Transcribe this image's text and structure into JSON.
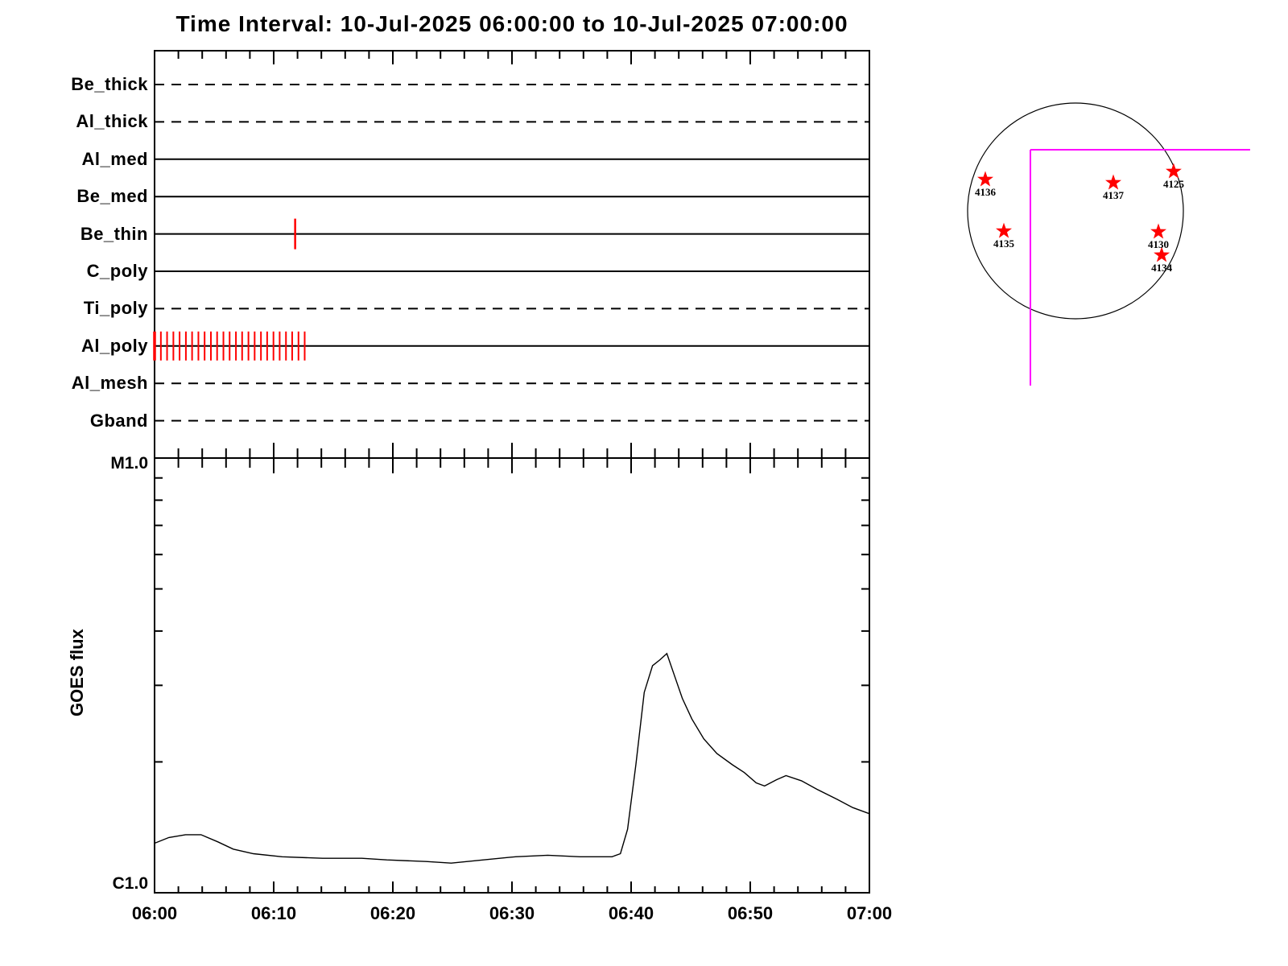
{
  "title": "Time Interval: 10-Jul-2025 06:00:00 to 10-Jul-2025 07:00:00",
  "colors": {
    "background": "#ffffff",
    "axis": "#000000",
    "exposure_mark": "#ff0000",
    "active_region_star": "#ff0000",
    "fov": "#ff00ff"
  },
  "chart_data": [
    {
      "type": "line",
      "panel": "xrt-filter-timeline",
      "x_axis": {
        "start_label": "06:00",
        "end_label": "07:00",
        "minutes_range": [
          0,
          60
        ],
        "minor_tick_minutes": 2,
        "major_tick_minutes": 10
      },
      "categories": [
        "Be_thick",
        "Al_thick",
        "Al_med",
        "Be_med",
        "Be_thin",
        "C_poly",
        "Ti_poly",
        "Al_poly",
        "Al_mesh",
        "Gband"
      ],
      "line_styles": [
        "dashed",
        "dashed",
        "solid",
        "solid",
        "solid",
        "solid",
        "dashed",
        "solid",
        "dashed",
        "dashed"
      ],
      "exposure_marks_minutes": {
        "Be_thin": [
          11.8
        ],
        "Al_poly": [
          0,
          0.53,
          1.05,
          1.58,
          2.1,
          2.63,
          3.15,
          3.68,
          4.2,
          4.73,
          5.25,
          5.78,
          6.3,
          6.83,
          7.35,
          7.88,
          8.4,
          8.93,
          9.45,
          9.98,
          10.5,
          11.03,
          11.55,
          12.08,
          12.6
        ]
      }
    },
    {
      "type": "line",
      "panel": "goes-flux",
      "ylabel": "GOES flux",
      "y_axis": {
        "scale": "log",
        "top_label": "M1.0",
        "bottom_label": "C1.0",
        "top_value_wm2": 1e-05,
        "bottom_value_wm2": 1e-06
      },
      "x_tick_labels": [
        "06:00",
        "06:10",
        "06:20",
        "06:30",
        "06:40",
        "06:50",
        "07:00"
      ],
      "series": [
        {
          "name": "GOES flux",
          "x_minutes": [
            0,
            1.2,
            2.6,
            3.9,
            5.3,
            6.6,
            8.3,
            10.7,
            14.1,
            17.4,
            19.5,
            22.8,
            24.9,
            27.6,
            30.3,
            33,
            35.7,
            38.4,
            39.1,
            39.7,
            40.4,
            41.1,
            41.8,
            42.4,
            43,
            43.6,
            44.3,
            45.1,
            46.1,
            47.2,
            48.5,
            49.5,
            50.5,
            51.2,
            52.2,
            53,
            54.3,
            55.6,
            57.3,
            58.6,
            60
          ],
          "flux_1e6_wm2": [
            1.3,
            1.34,
            1.36,
            1.36,
            1.31,
            1.26,
            1.23,
            1.21,
            1.2,
            1.2,
            1.19,
            1.18,
            1.17,
            1.19,
            1.21,
            1.22,
            1.21,
            1.21,
            1.23,
            1.4,
            1.97,
            2.89,
            3.33,
            3.43,
            3.55,
            3.18,
            2.8,
            2.51,
            2.26,
            2.09,
            1.97,
            1.89,
            1.79,
            1.76,
            1.82,
            1.86,
            1.81,
            1.73,
            1.64,
            1.57,
            1.52
          ]
        }
      ],
      "peak": {
        "time": "06:43",
        "flux_class": "C3.5"
      }
    },
    {
      "type": "scatter",
      "panel": "solar-disk-map",
      "active_regions": [
        {
          "label": "4136",
          "x_r": -0.836,
          "y_r": -0.291
        },
        {
          "label": "4137",
          "x_r": 0.351,
          "y_r": -0.261
        },
        {
          "label": "4125",
          "x_r": 0.91,
          "y_r": -0.366
        },
        {
          "label": "4135",
          "x_r": -0.664,
          "y_r": 0.187
        },
        {
          "label": "4130",
          "x_r": 0.769,
          "y_r": 0.194
        },
        {
          "label": "4134",
          "x_r": 0.799,
          "y_r": 0.41
        }
      ],
      "fov_r": {
        "corner_x": -0.418,
        "corner_y": -0.567,
        "h_end_x": 1.619,
        "v_end_y": 1.619
      }
    }
  ]
}
